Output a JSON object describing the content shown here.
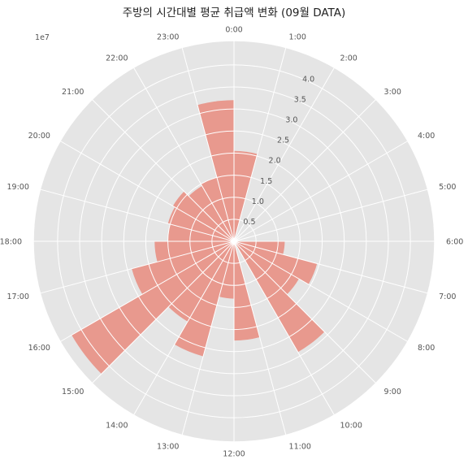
{
  "chart_data": {
    "type": "polar-bar",
    "title": "주방의 시간대별 평균 취급액 변화 (09월 DATA)",
    "scale_label": "1e7",
    "radial_ticks": [
      "0.5",
      "1.0",
      "1.5",
      "2.0",
      "2.5",
      "3.0",
      "3.5",
      "4.0"
    ],
    "radial_tick_values": [
      0.5,
      1.0,
      1.5,
      2.0,
      2.5,
      3.0,
      3.5,
      4.0
    ],
    "rmax": 4.55,
    "direction": "clockwise",
    "zero_location": "top",
    "categories": [
      "0:00",
      "1:00",
      "2:00",
      "3:00",
      "4:00",
      "5:00",
      "6:00",
      "7:00",
      "8:00",
      "9:00",
      "10:00",
      "11:00",
      "12:00",
      "13:00",
      "14:00",
      "15:00",
      "16:00",
      "17:00",
      "18:00",
      "19:00",
      "20:00",
      "21:00",
      "22:00",
      "23:00"
    ],
    "values": [
      0,
      0,
      0,
      0,
      0,
      0,
      1.68,
      2.2,
      1.82,
      3.3,
      0,
      2.55,
      1.82,
      2.75,
      2.0,
      4.63,
      2.75,
      1.95,
      1.5,
      1.6,
      1.65,
      1.6,
      1.8,
      3.3
    ],
    "bar_values": [
      2.05,
      0,
      0,
      0,
      0,
      0,
      1.15,
      1.95,
      1.7,
      2.9,
      0,
      2.25,
      1.3,
      2.7,
      2.1,
      4.25,
      2.4,
      1.8,
      1.5,
      1.55,
      1.6,
      1.45,
      1.5,
      3.2
    ],
    "bar_color": "#e8887a",
    "grid": true
  }
}
